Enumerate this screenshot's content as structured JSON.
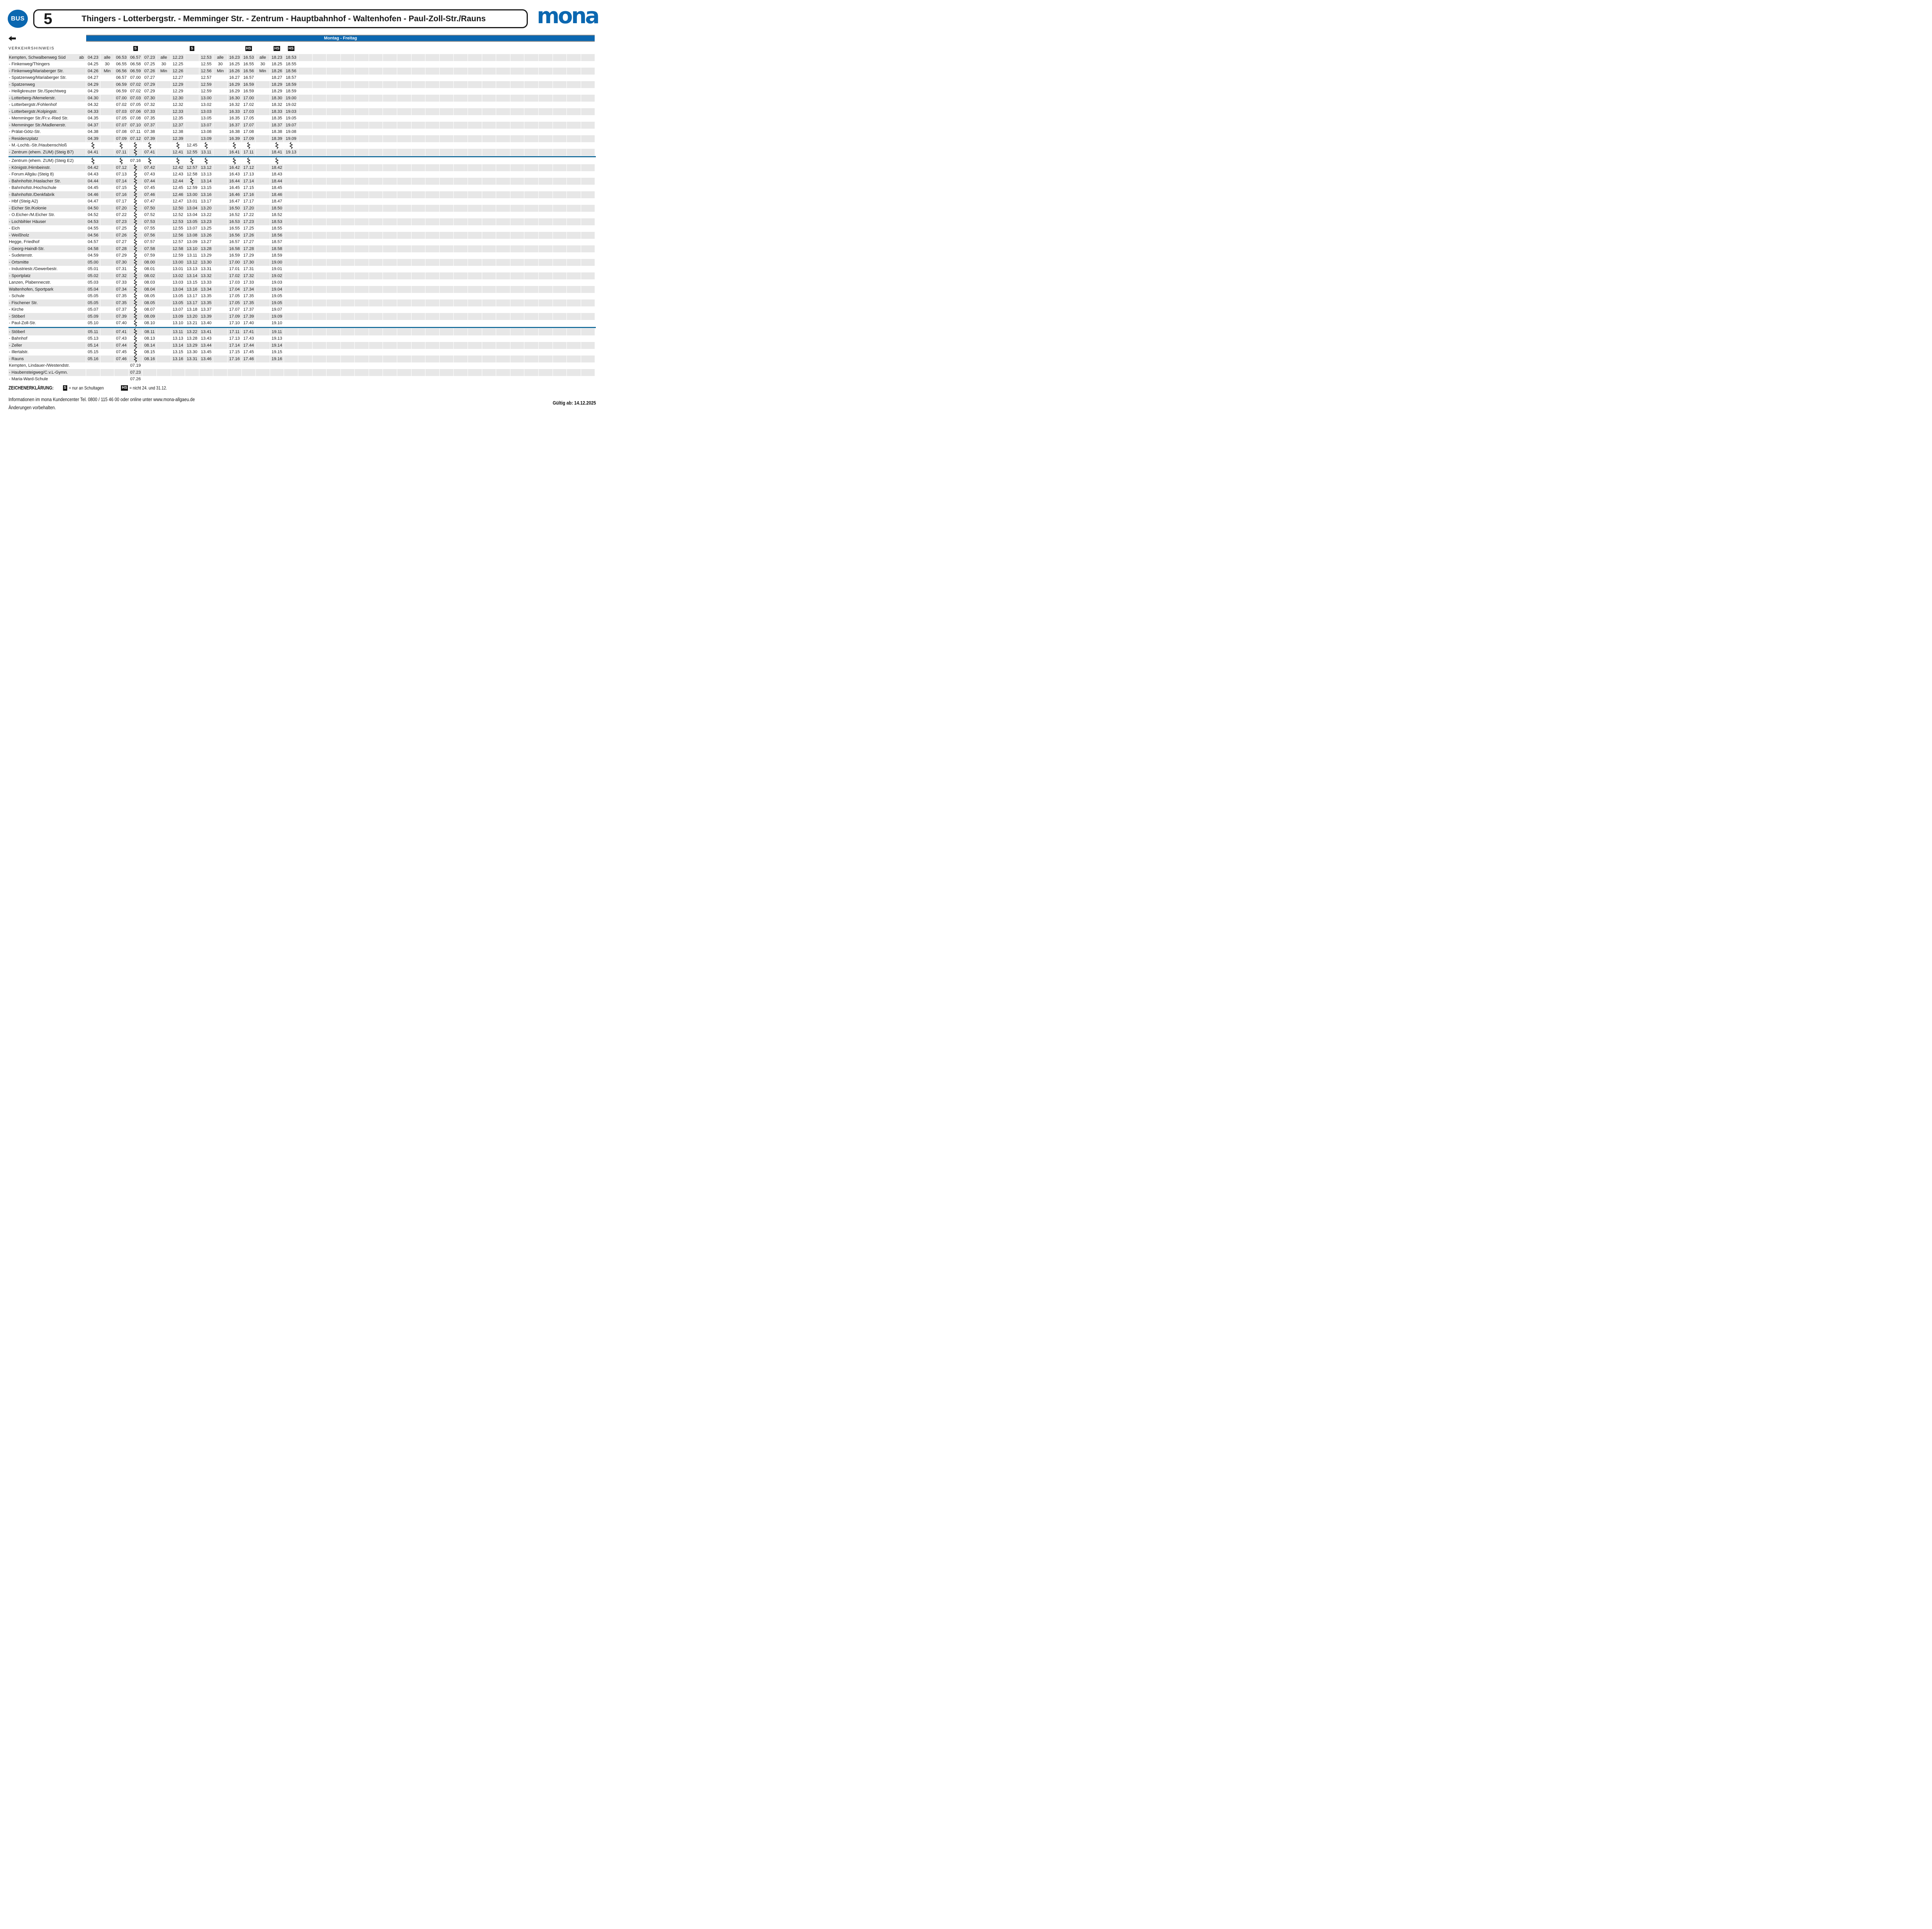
{
  "header": {
    "bus_badge": "BUS",
    "route_number": "5",
    "route_title": "Thingers - Lotterbergstr. - Memminger Str. - Zentrum - Hauptbahnhof - Waltenhofen - Paul-Zoll-Str./Rauns",
    "brand": "mona"
  },
  "service_band": {
    "label": "Montag - Freitag"
  },
  "colors": {
    "brand_blue": "#0b67b0",
    "separator_blue": "#1b6e9b",
    "row_grey": "#e7e7e7",
    "badge_black": "#111111"
  },
  "table": {
    "note_label": "VERKEHRSHINWEIS",
    "ab_label": "ab",
    "total_columns": 36,
    "content_columns": 15,
    "header_badges": [
      {
        "col": 4,
        "text": "S"
      },
      {
        "col": 8,
        "text": "S"
      },
      {
        "col": 12,
        "text": "HS"
      },
      {
        "col": 14,
        "text": "HS"
      },
      {
        "col": 15,
        "text": "HS"
      }
    ],
    "separators_after_row": [
      15,
      40
    ],
    "zigzag_marker": "~",
    "rows": [
      {
        "name": "Kempten, Schwalbenweg Süd",
        "ab": "ab",
        "times": [
          "04.23",
          "alle",
          "06.53",
          "06.57",
          "07.23",
          "alle",
          "12.23",
          "",
          "12.53",
          "alle",
          "16.23",
          "16.53",
          "alle",
          "18.23",
          "18.53"
        ]
      },
      {
        "name": "- Finkenweg/Thingers",
        "times": [
          "04.25",
          "30",
          "06.55",
          "06.58",
          "07.25",
          "30",
          "12.25",
          "",
          "12.55",
          "30",
          "16.25",
          "16.55",
          "30",
          "18.25",
          "18.55"
        ]
      },
      {
        "name": "- Finkenweg/Mariaberger Str.",
        "times": [
          "04.26",
          "Min",
          "06.56",
          "06.59",
          "07.26",
          "Min",
          "12.26",
          "",
          "12.56",
          "Min",
          "16.26",
          "16.56",
          "Min",
          "18.26",
          "18.56"
        ]
      },
      {
        "name": "- Spatzenweg/Mariaberger Str.",
        "times": [
          "04.27",
          "",
          "06.57",
          "07.00",
          "07.27",
          "",
          "12.27",
          "",
          "12.57",
          "",
          "16.27",
          "16.57",
          "",
          "18.27",
          "18.57"
        ]
      },
      {
        "name": "- Spatzenweg",
        "times": [
          "04.29",
          "",
          "06.59",
          "07.02",
          "07.29",
          "",
          "12.29",
          "",
          "12.59",
          "",
          "16.29",
          "16.59",
          "",
          "18.29",
          "18.59"
        ]
      },
      {
        "name": "- Heiligkreuzer Str./Spechtweg",
        "times": [
          "04.29",
          "",
          "06.59",
          "07.02",
          "07.29",
          "",
          "12.29",
          "",
          "12.59",
          "",
          "16.29",
          "16.59",
          "",
          "18.29",
          "18.59"
        ]
      },
      {
        "name": "- Lotterberg-/Memelerstr.",
        "times": [
          "04.30",
          "",
          "07.00",
          "07.03",
          "07.30",
          "",
          "12.30",
          "",
          "13.00",
          "",
          "16.30",
          "17.00",
          "",
          "18.30",
          "19.00"
        ]
      },
      {
        "name": "- Lotterbergstr./Fohlenhof",
        "times": [
          "04.32",
          "",
          "07.02",
          "07.05",
          "07.32",
          "",
          "12.32",
          "",
          "13.02",
          "",
          "16.32",
          "17.02",
          "",
          "18.32",
          "19.02"
        ]
      },
      {
        "name": "- Lotterbergstr./Kolpingstr.",
        "times": [
          "04.33",
          "",
          "07.03",
          "07.06",
          "07.33",
          "",
          "12.33",
          "",
          "13.03",
          "",
          "16.33",
          "17.03",
          "",
          "18.33",
          "19.03"
        ]
      },
      {
        "name": "- Memminger Str./Fr.v.-Ried Str.",
        "times": [
          "04.35",
          "",
          "07.05",
          "07.08",
          "07.35",
          "",
          "12.35",
          "",
          "13.05",
          "",
          "16.35",
          "17.05",
          "",
          "18.35",
          "19.05"
        ]
      },
      {
        "name": "- Memminger Str./Madlenerstr.",
        "times": [
          "04.37",
          "",
          "07.07",
          "07.10",
          "07.37",
          "",
          "12.37",
          "",
          "13.07",
          "",
          "16.37",
          "17.07",
          "",
          "18.37",
          "19.07"
        ]
      },
      {
        "name": "- Prälat-Götz-Str.",
        "times": [
          "04.38",
          "",
          "07.08",
          "07.11",
          "07.38",
          "",
          "12.38",
          "",
          "13.08",
          "",
          "16.38",
          "17.08",
          "",
          "18.38",
          "19.08"
        ]
      },
      {
        "name": "- Residenzplatz",
        "times": [
          "04.39",
          "",
          "07.09",
          "07.12",
          "07.39",
          "",
          "12.39",
          "",
          "13.09",
          "",
          "16.39",
          "17.09",
          "",
          "18.39",
          "19.09"
        ]
      },
      {
        "name": "- M.-Lochb.-Str./Haubenschloß",
        "times": [
          "~",
          "",
          "~",
          "~",
          "~",
          "",
          "~",
          "12.45",
          "~",
          "",
          "~",
          "~",
          "",
          "~",
          "~"
        ]
      },
      {
        "name": "- Zentrum (ehem. ZUM) (Steig B7)",
        "times": [
          "04.41",
          "",
          "07.11",
          "~",
          "07.41",
          "",
          "12.41",
          "12.55",
          "13.11",
          "",
          "16.41",
          "17.11",
          "",
          "18.41",
          "19.13"
        ]
      },
      {
        "name": "- Zentrum (ehem. ZUM) (Steig E2)",
        "times": [
          "~",
          "",
          "~",
          "07.16",
          "~",
          "",
          "~",
          "~",
          "~",
          "",
          "~",
          "~",
          "",
          "~",
          ""
        ]
      },
      {
        "name": "- Königstr./Hirnbeinstr.",
        "times": [
          "04.42",
          "",
          "07.12",
          "~",
          "07.42",
          "",
          "12.42",
          "12.57",
          "13.12",
          "",
          "16.42",
          "17.12",
          "",
          "18.42",
          ""
        ]
      },
      {
        "name": "- Forum Allgäu (Steig 8)",
        "times": [
          "04.43",
          "",
          "07.13",
          "~",
          "07.43",
          "",
          "12.43",
          "12.58",
          "13.13",
          "",
          "16.43",
          "17.13",
          "",
          "18.43",
          ""
        ]
      },
      {
        "name": "- Bahnhofstr./Haslacher Str.",
        "times": [
          "04.44",
          "",
          "07.14",
          "~",
          "07.44",
          "",
          "12.44",
          "~",
          "13.14",
          "",
          "16.44",
          "17.14",
          "",
          "18.44",
          ""
        ]
      },
      {
        "name": "- Bahnhofstr./Hochschule",
        "times": [
          "04.45",
          "",
          "07.15",
          "~",
          "07.45",
          "",
          "12.45",
          "12.59",
          "13.15",
          "",
          "16.45",
          "17.15",
          "",
          "18.45",
          ""
        ]
      },
      {
        "name": "- Bahnhofstr./Denkfabrik",
        "times": [
          "04.46",
          "",
          "07.16",
          "~",
          "07.46",
          "",
          "12.46",
          "13.00",
          "13.16",
          "",
          "16.46",
          "17.16",
          "",
          "18.46",
          ""
        ]
      },
      {
        "name": "- Hbf (Steig A2)",
        "times": [
          "04.47",
          "",
          "07.17",
          "~",
          "07.47",
          "",
          "12.47",
          "13.01",
          "13.17",
          "",
          "16.47",
          "17.17",
          "",
          "18.47",
          ""
        ]
      },
      {
        "name": "- Eicher Str./Kolonie",
        "times": [
          "04.50",
          "",
          "07.20",
          "~",
          "07.50",
          "",
          "12.50",
          "13.04",
          "13.20",
          "",
          "16.50",
          "17.20",
          "",
          "18.50",
          ""
        ]
      },
      {
        "name": "- O.Eicher-/M.Eicher Str.",
        "times": [
          "04.52",
          "",
          "07.22",
          "~",
          "07.52",
          "",
          "12.52",
          "13.04",
          "13.22",
          "",
          "16.52",
          "17.22",
          "",
          "18.52",
          ""
        ]
      },
      {
        "name": "- Lochbihler Häuser",
        "times": [
          "04.53",
          "",
          "07.23",
          "~",
          "07.53",
          "",
          "12.53",
          "13.05",
          "13.23",
          "",
          "16.53",
          "17.23",
          "",
          "18.53",
          ""
        ]
      },
      {
        "name": "- Eich",
        "times": [
          "04.55",
          "",
          "07.25",
          "~",
          "07.55",
          "",
          "12.55",
          "13.07",
          "13.25",
          "",
          "16.55",
          "17.25",
          "",
          "18.55",
          ""
        ]
      },
      {
        "name": "- Weißholz",
        "times": [
          "04.56",
          "",
          "07.26",
          "~",
          "07.56",
          "",
          "12.56",
          "13.08",
          "13.26",
          "",
          "16.56",
          "17.26",
          "",
          "18.56",
          ""
        ]
      },
      {
        "name": "Hegge, Friedhof",
        "times": [
          "04.57",
          "",
          "07.27",
          "~",
          "07.57",
          "",
          "12.57",
          "13.09",
          "13.27",
          "",
          "16.57",
          "17.27",
          "",
          "18.57",
          ""
        ]
      },
      {
        "name": "- Georg-Haindl-Str.",
        "times": [
          "04.58",
          "",
          "07.28",
          "~",
          "07.58",
          "",
          "12.58",
          "13.10",
          "13.28",
          "",
          "16.58",
          "17.28",
          "",
          "18.58",
          ""
        ]
      },
      {
        "name": "- Sudetenstr.",
        "times": [
          "04.59",
          "",
          "07.29",
          "~",
          "07.59",
          "",
          "12.59",
          "13.11",
          "13.29",
          "",
          "16.59",
          "17.29",
          "",
          "18.59",
          ""
        ]
      },
      {
        "name": "- Ortsmitte",
        "times": [
          "05.00",
          "",
          "07.30",
          "~",
          "08.00",
          "",
          "13.00",
          "13.12",
          "13.30",
          "",
          "17.00",
          "17.30",
          "",
          "19.00",
          ""
        ]
      },
      {
        "name": "- Industriestr./Gewerbestr.",
        "times": [
          "05.01",
          "",
          "07.31",
          "~",
          "08.01",
          "",
          "13.01",
          "13.13",
          "13.31",
          "",
          "17.01",
          "17.31",
          "",
          "19.01",
          ""
        ]
      },
      {
        "name": "- Sportplatz",
        "times": [
          "05.02",
          "",
          "07.32",
          "~",
          "08.02",
          "",
          "13.02",
          "13.14",
          "13.32",
          "",
          "17.02",
          "17.32",
          "",
          "19.02",
          ""
        ]
      },
      {
        "name": "Lanzen, Plabennecstr.",
        "times": [
          "05.03",
          "",
          "07.33",
          "~",
          "08.03",
          "",
          "13.03",
          "13.15",
          "13.33",
          "",
          "17.03",
          "17.33",
          "",
          "19.03",
          ""
        ]
      },
      {
        "name": "Waltenhofen, Sportpark",
        "times": [
          "05.04",
          "",
          "07.34",
          "~",
          "08.04",
          "",
          "13.04",
          "13.16",
          "13.34",
          "",
          "17.04",
          "17.34",
          "",
          "19.04",
          ""
        ]
      },
      {
        "name": "- Schule",
        "times": [
          "05.05",
          "",
          "07.35",
          "~",
          "08.05",
          "",
          "13.05",
          "13.17",
          "13.35",
          "",
          "17.05",
          "17.35",
          "",
          "19.05",
          ""
        ]
      },
      {
        "name": "- Fischener Str.",
        "times": [
          "05.05",
          "",
          "07.35",
          "~",
          "08.05",
          "",
          "13.05",
          "13.17",
          "13.35",
          "",
          "17.05",
          "17.35",
          "",
          "19.05",
          ""
        ]
      },
      {
        "name": "- Kirche",
        "times": [
          "05.07",
          "",
          "07.37",
          "~",
          "08.07",
          "",
          "13.07",
          "13.18",
          "13.37",
          "",
          "17.07",
          "17.37",
          "",
          "19.07",
          ""
        ]
      },
      {
        "name": "- Stöberl",
        "times": [
          "05.09",
          "",
          "07.39",
          "~",
          "08.09",
          "",
          "13.09",
          "13.20",
          "13.39",
          "",
          "17.09",
          "17.39",
          "",
          "19.09",
          ""
        ]
      },
      {
        "name": "- Paul-Zoll-Str.",
        "times": [
          "05.10",
          "",
          "07.40",
          "~",
          "08.10",
          "",
          "13.10",
          "13.21",
          "13.40",
          "",
          "17.10",
          "17.40",
          "",
          "19.10",
          ""
        ]
      },
      {
        "name": "- Stöberl",
        "times": [
          "05.11",
          "",
          "07.41",
          "~",
          "08.11",
          "",
          "13.11",
          "13.22",
          "13.41",
          "",
          "17.11",
          "17.41",
          "",
          "19.11",
          ""
        ]
      },
      {
        "name": "- Bahnhof",
        "times": [
          "05.13",
          "",
          "07.43",
          "~",
          "08.13",
          "",
          "13.13",
          "13.28",
          "13.43",
          "",
          "17.13",
          "17.43",
          "",
          "19.13",
          ""
        ]
      },
      {
        "name": "- Zeller",
        "times": [
          "05.14",
          "",
          "07.44",
          "~",
          "08.14",
          "",
          "13.14",
          "13.29",
          "13.44",
          "",
          "17.14",
          "17.44",
          "",
          "19.14",
          ""
        ]
      },
      {
        "name": "- Illertalstr.",
        "times": [
          "05.15",
          "",
          "07.45",
          "~",
          "08.15",
          "",
          "13.15",
          "13.30",
          "13.45",
          "",
          "17.15",
          "17.45",
          "",
          "19.15",
          ""
        ]
      },
      {
        "name": "- Rauns",
        "times": [
          "05.16",
          "",
          "07.46",
          "~",
          "08.16",
          "",
          "13.16",
          "13.31",
          "13.46",
          "",
          "17.16",
          "17.46",
          "",
          "19.16",
          ""
        ]
      },
      {
        "name": "Kempten, Lindauer-/Westendstr.",
        "times": [
          "",
          "",
          "",
          "07.19",
          "",
          "",
          "",
          "",
          "",
          "",
          "",
          "",
          "",
          "",
          ""
        ]
      },
      {
        "name": "- Haubensteigweg/C.v.L-Gymn.",
        "times": [
          "",
          "",
          "",
          "07.23",
          "",
          "",
          "",
          "",
          "",
          "",
          "",
          "",
          "",
          "",
          ""
        ]
      },
      {
        "name": "- Maria-Ward-Schule",
        "times": [
          "",
          "",
          "",
          "07.26",
          "",
          "",
          "",
          "",
          "",
          "",
          "",
          "",
          "",
          "",
          ""
        ]
      }
    ]
  },
  "legend": {
    "title": "ZEICHENERKLÄRUNG:",
    "items": [
      {
        "badge": "S",
        "text": "= nur an Schultagen"
      },
      {
        "badge": "HS",
        "text": "= nicht 24. und 31.12."
      }
    ]
  },
  "footer": {
    "info": "Informationen im mona Kundencenter Tel. 0800 / 115 46 00 oder online unter www.mona-allgaeu.de",
    "changes": "Änderungen vorbehalten.",
    "valid_from": "Gültig ab: 14.12.2025"
  }
}
